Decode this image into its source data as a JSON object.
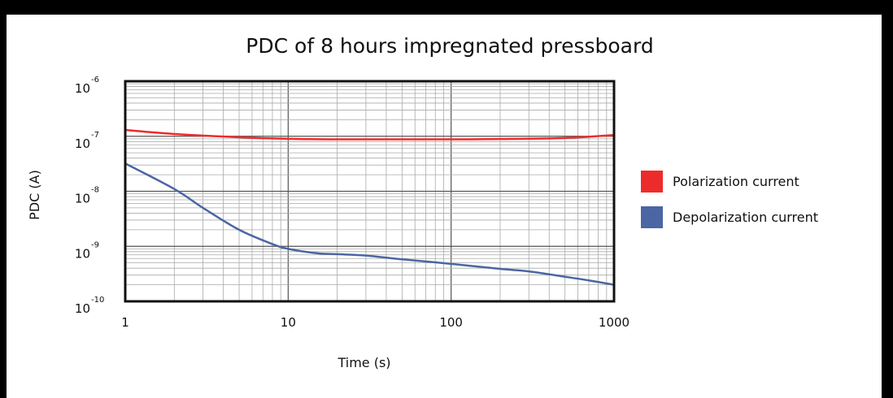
{
  "chart_data": {
    "type": "line",
    "title": "PDC of 8 hours impregnated pressboard",
    "xlabel": "Time (s)",
    "ylabel": "PDC (A)",
    "xscale": "log",
    "yscale": "log",
    "xlim": [
      1,
      1000
    ],
    "ylim": [
      1e-10,
      1e-06
    ],
    "x_ticks": [
      "1",
      "10",
      "100",
      "1000"
    ],
    "y_ticks": [
      {
        "base": "10",
        "exp": "-10"
      },
      {
        "base": "10",
        "exp": "-9"
      },
      {
        "base": "10",
        "exp": "-8"
      },
      {
        "base": "10",
        "exp": "-7"
      },
      {
        "base": "10",
        "exp": "-6"
      }
    ],
    "grid": true,
    "legend_position": "right",
    "series": [
      {
        "name": "Polarization current",
        "color": "#ee2b2b",
        "x": [
          1,
          2,
          5,
          10,
          20,
          50,
          100,
          200,
          500,
          1000
        ],
        "y": [
          1.3e-07,
          1.1e-07,
          9.6e-08,
          9e-08,
          8.8e-08,
          8.8e-08,
          8.8e-08,
          8.9e-08,
          9.3e-08,
          1.05e-07
        ]
      },
      {
        "name": "Depolarization current",
        "color": "#4a66a3",
        "x": [
          1,
          2,
          3,
          5,
          8,
          10,
          15,
          20,
          30,
          50,
          100,
          200,
          300,
          500,
          700,
          1000
        ],
        "y": [
          3.2e-08,
          1.1e-08,
          5e-09,
          2e-09,
          1.1e-09,
          9e-10,
          7.5e-10,
          7.2e-10,
          6.8e-10,
          5.8e-10,
          4.8e-10,
          3.9e-10,
          3.5e-10,
          2.8e-10,
          2.4e-10,
          2e-10
        ]
      }
    ]
  }
}
